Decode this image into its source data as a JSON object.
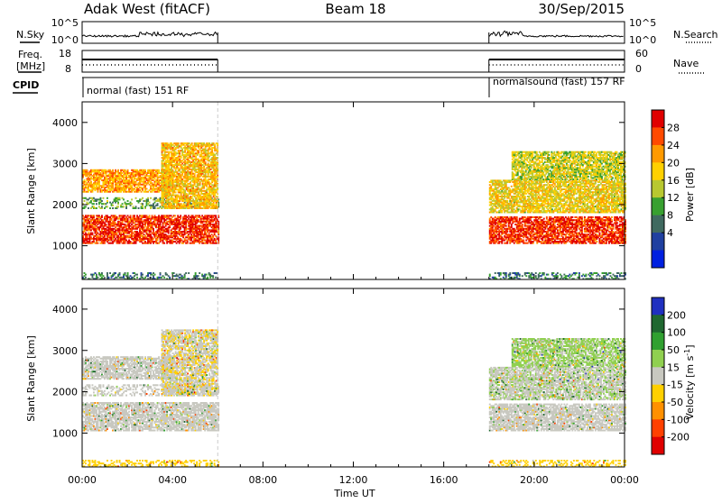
{
  "header": {
    "site": "Adak West (fitACF)",
    "beam": "Beam 18",
    "date": "30/Sep/2015"
  },
  "left_labels": {
    "nsky": "N.Sky",
    "freq_line1": "Freq.",
    "freq_line2": "[MHz]",
    "cpid": "CPID"
  },
  "right_labels": {
    "nsearch": "N.Search",
    "nave": "Nave"
  },
  "noise_panel": {
    "left_ticks": [
      "10^5",
      "10^0"
    ],
    "right_ticks": [
      "10^5",
      "10^0"
    ]
  },
  "freq_panel": {
    "left_ticks": [
      "18",
      "8"
    ],
    "right_ticks": [
      "60",
      "0"
    ]
  },
  "cpid_panel": {
    "segment1": "normal (fast) 151 RF",
    "segment2": "normalsound (fast) 157 RF"
  },
  "power_colorbar": {
    "label": "Power [dB]",
    "ticks": [
      "28",
      "24",
      "20",
      "16",
      "12",
      "8",
      "4"
    ],
    "colors": [
      "#e00000",
      "#ff4a00",
      "#ff9a00",
      "#ffd000",
      "#b8c830",
      "#38a030",
      "#406a60",
      "#2040a0",
      "#0020e0"
    ]
  },
  "velocity_colorbar": {
    "label": "Velocity [m s",
    "label_sup": "-1",
    "label_end": "]",
    "ticks": [
      "200",
      "100",
      "50",
      "15",
      "-15",
      "-50",
      "-100",
      "-200"
    ],
    "colors": [
      "#2030c0",
      "#206830",
      "#30a030",
      "#90d050",
      "#c8c8c0",
      "#ffd000",
      "#ff9000",
      "#ff4000",
      "#e00000"
    ]
  },
  "power_panel": {
    "ylabel": "Slant Range [km]",
    "yticks": [
      "4000",
      "3000",
      "2000",
      "1000"
    ]
  },
  "velocity_panel": {
    "ylabel": "Slant Range [km]",
    "yticks": [
      "4000",
      "3000",
      "2000",
      "1000"
    ]
  },
  "xaxis": {
    "label": "Time UT",
    "ticks": [
      "00:00",
      "04:00",
      "08:00",
      "12:00",
      "16:00",
      "20:00",
      "00:00"
    ]
  },
  "chart_data": [
    {
      "type": "heatmap",
      "title": "Power",
      "xlabel": "Time UT",
      "ylabel": "Slant Range [km]",
      "xlim_hours": [
        0,
        24
      ],
      "ylim_km": [
        180,
        4500
      ],
      "colorbar": {
        "label": "Power [dB]",
        "range": [
          0,
          30
        ]
      },
      "data_intervals_hours": [
        [
          0,
          6
        ],
        [
          18,
          24
        ]
      ],
      "echo_bands": [
        {
          "t": [
            0,
            6
          ],
          "range_km": [
            1050,
            1750
          ],
          "power_db": 28
        },
        {
          "t": [
            0,
            4
          ],
          "range_km": [
            2300,
            2850
          ],
          "power_db": 22
        },
        {
          "t": [
            0,
            6
          ],
          "range_km": [
            1900,
            2150
          ],
          "power_db": 12
        },
        {
          "t": [
            3.5,
            6
          ],
          "range_km": [
            1900,
            3500
          ],
          "power_db": 20
        },
        {
          "t": [
            18,
            24
          ],
          "range_km": [
            1050,
            1700
          ],
          "power_db": 28
        },
        {
          "t": [
            18,
            24
          ],
          "range_km": [
            1800,
            2600
          ],
          "power_db": 18
        },
        {
          "t": [
            19,
            24
          ],
          "range_km": [
            2600,
            3300
          ],
          "power_db": 16
        },
        {
          "t": [
            0,
            24
          ],
          "range_km": [
            180,
            350
          ],
          "power_db": 8
        }
      ]
    },
    {
      "type": "heatmap",
      "title": "Velocity",
      "xlabel": "Time UT",
      "ylabel": "Slant Range [km]",
      "xlim_hours": [
        0,
        24
      ],
      "ylim_km": [
        180,
        4500
      ],
      "colorbar": {
        "label": "Velocity [m s-1]",
        "range": [
          -200,
          200
        ]
      },
      "data_intervals_hours": [
        [
          0,
          6
        ],
        [
          18,
          24
        ]
      ],
      "echo_bands": [
        {
          "t": [
            0,
            6
          ],
          "range_km": [
            1050,
            1750
          ],
          "velocity_ms": 0
        },
        {
          "t": [
            0,
            4
          ],
          "range_km": [
            2300,
            2850
          ],
          "velocity_ms": 0
        },
        {
          "t": [
            0,
            6
          ],
          "range_km": [
            1900,
            2150
          ],
          "velocity_ms": 10
        },
        {
          "t": [
            3.5,
            6
          ],
          "range_km": [
            1900,
            3500
          ],
          "velocity_ms": -20
        },
        {
          "t": [
            18,
            24
          ],
          "range_km": [
            1050,
            1700
          ],
          "velocity_ms": 0
        },
        {
          "t": [
            18,
            24
          ],
          "range_km": [
            1800,
            2600
          ],
          "velocity_ms": 20
        },
        {
          "t": [
            19,
            24
          ],
          "range_km": [
            2600,
            3300
          ],
          "velocity_ms": 30
        },
        {
          "t": [
            0,
            24
          ],
          "range_km": [
            180,
            350
          ],
          "velocity_ms": -50
        }
      ]
    }
  ]
}
